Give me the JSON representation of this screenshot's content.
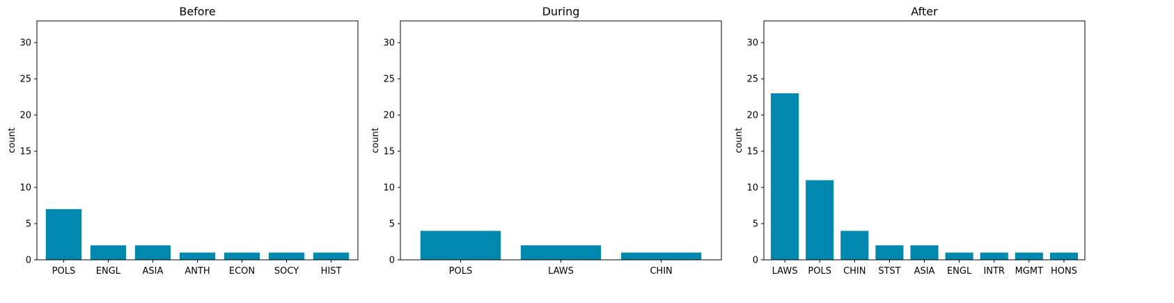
{
  "colors": {
    "bar": "#0088AF",
    "axis": "#000000",
    "background": "#ffffff"
  },
  "chart_data": [
    {
      "type": "bar",
      "title": "Before",
      "ylabel": "count",
      "ylim": [
        0,
        33
      ],
      "yticks": [
        0,
        5,
        10,
        15,
        20,
        25,
        30
      ],
      "grid": false,
      "categories": [
        "POLS",
        "ENGL",
        "ASIA",
        "ANTH",
        "ECON",
        "SOCY",
        "HIST"
      ],
      "values": [
        7,
        2,
        2,
        1,
        1,
        1,
        1
      ]
    },
    {
      "type": "bar",
      "title": "During",
      "ylabel": "count",
      "ylim": [
        0,
        33
      ],
      "yticks": [
        0,
        5,
        10,
        15,
        20,
        25,
        30
      ],
      "grid": false,
      "categories": [
        "POLS",
        "LAWS",
        "CHIN"
      ],
      "values": [
        4,
        2,
        1
      ]
    },
    {
      "type": "bar",
      "title": "After",
      "ylabel": "count",
      "ylim": [
        0,
        33
      ],
      "yticks": [
        0,
        5,
        10,
        15,
        20,
        25,
        30
      ],
      "grid": false,
      "categories": [
        "LAWS",
        "POLS",
        "CHIN",
        "STST",
        "ASIA",
        "ENGL",
        "INTR",
        "MGMT",
        "HONS"
      ],
      "values": [
        23,
        11,
        4,
        2,
        2,
        1,
        1,
        1,
        1
      ]
    }
  ]
}
